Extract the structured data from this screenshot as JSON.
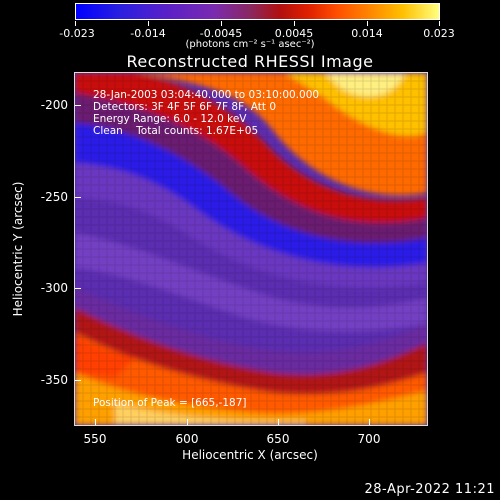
{
  "colorbar": {
    "tick_labels": [
      "-0.023",
      "-0.014",
      "-0.0045",
      "0.0045",
      "0.014",
      "0.023"
    ],
    "units": "(photons cm⁻² s⁻¹ asec⁻²)"
  },
  "title": "Reconstructed RHESSI Image",
  "info": {
    "time": "28-Jan-2003 03:04:40.000 to 03:10:00.000",
    "detectors": "Detectors: 3F 4F 5F 6F 7F 8F, Att 0",
    "energy": "Energy Range: 6.0 - 12.0 keV",
    "clean": "Clean    Total counts: 1.67E+05"
  },
  "peak": "Position of Peak = [665,-187]",
  "axes": {
    "xlabel": "Heliocentric X (arcsec)",
    "ylabel": "Heliocentric Y (arcsec)",
    "xticks": [
      "550",
      "600",
      "650",
      "700"
    ],
    "yticks": [
      "-200",
      "-250",
      "-300",
      "-350"
    ]
  },
  "footer_date": "28-Apr-2022 11:21"
}
